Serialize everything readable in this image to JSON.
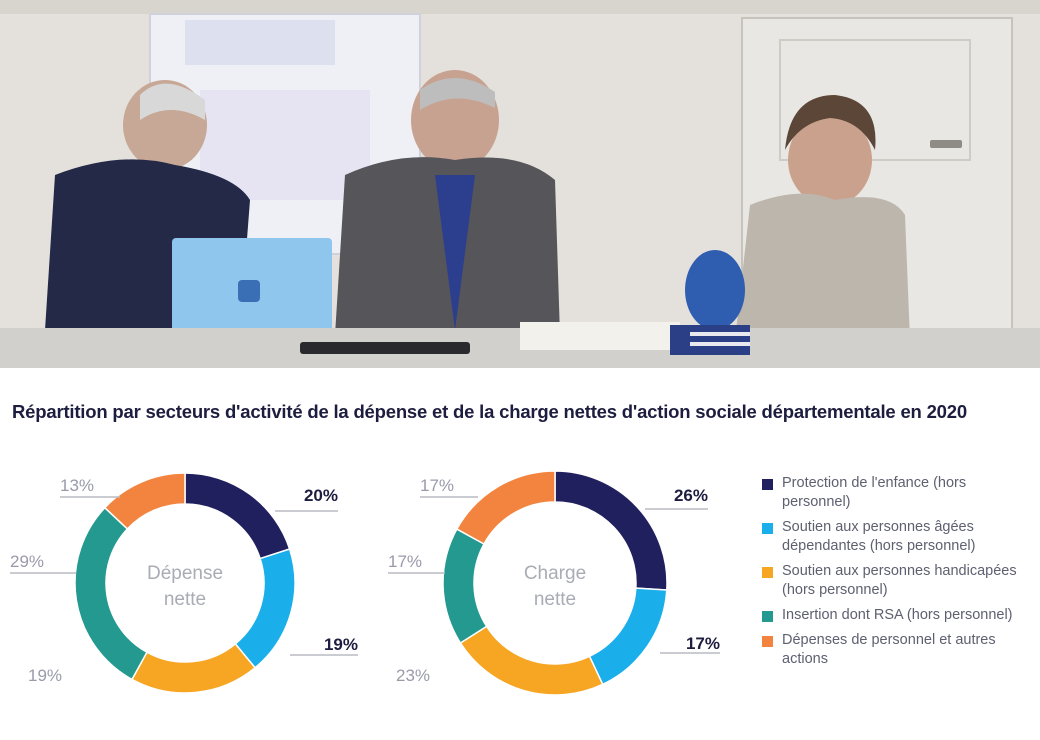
{
  "title": "Répartition par secteurs d'activité de la dépense et de la charge nettes d'action sociale départementale en 2020",
  "colors": {
    "navy": "#21205e",
    "sky": "#1aaeea",
    "yellow": "#f6a623",
    "teal": "#23998f",
    "orange": "#f2843f"
  },
  "photo": {
    "description_icon": "meeting-photo"
  },
  "legend": [
    {
      "label": "Protection de l'enfance (hors personnel)",
      "color": "#21205e"
    },
    {
      "label": "Soutien aux personnes âgées dépendantes (hors personnel)",
      "color": "#1aaeea"
    },
    {
      "label": "Soutien aux personnes handicapées (hors personnel)",
      "color": "#f6a623"
    },
    {
      "label": "Insertion dont RSA (hors personnel)",
      "color": "#23998f"
    },
    {
      "label": "Dépenses de personnel et autres actions",
      "color": "#f2843f"
    }
  ],
  "chart_data": [
    {
      "type": "pie",
      "center_label_line1": "Dépense",
      "center_label_line2": "nette",
      "categories": [
        "Protection de l'enfance (hors personnel)",
        "Soutien aux personnes âgées dépendantes (hors personnel)",
        "Soutien aux personnes handicapées (hors personnel)",
        "Insertion dont RSA (hors personnel)",
        "Dépenses de personnel et autres actions"
      ],
      "values": [
        20,
        19,
        19,
        29,
        13
      ],
      "labels": [
        "20%",
        "19%",
        "19%",
        "29%",
        "13%"
      ]
    },
    {
      "type": "pie",
      "center_label_line1": "Charge",
      "center_label_line2": "nette",
      "categories": [
        "Protection de l'enfance (hors personnel)",
        "Soutien aux personnes âgées dépendantes (hors personnel)",
        "Soutien aux personnes handicapées (hors personnel)",
        "Insertion dont RSA (hors personnel)",
        "Dépenses de personnel et autres actions"
      ],
      "values": [
        26,
        17,
        23,
        17,
        17
      ],
      "labels": [
        "26%",
        "17%",
        "23%",
        "17%",
        "17%"
      ]
    }
  ]
}
